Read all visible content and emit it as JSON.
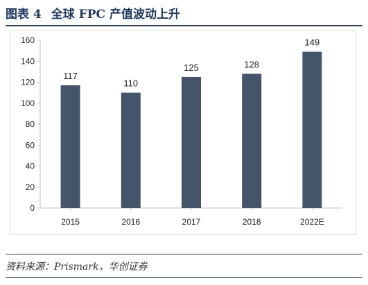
{
  "figure": {
    "label": "图表 4",
    "title": "全球 FPC 产值波动上升",
    "source": "资料来源：Prismark，华创证券"
  },
  "colors": {
    "bar": "#44546a",
    "axis": "#bfbfbf",
    "title": "#1f3a63"
  },
  "chart_data": {
    "type": "bar",
    "categories": [
      "2015",
      "2016",
      "2017",
      "2018",
      "2022E"
    ],
    "values": [
      117,
      110,
      125,
      128,
      149
    ],
    "data_labels": [
      "117",
      "110",
      "125",
      "128",
      "149"
    ],
    "title": "",
    "xlabel": "",
    "ylabel": "",
    "ylim": [
      0,
      160
    ],
    "yticks": [
      "0",
      "20",
      "40",
      "60",
      "80",
      "100",
      "120",
      "140",
      "160"
    ],
    "grid": false,
    "legend": "none"
  }
}
